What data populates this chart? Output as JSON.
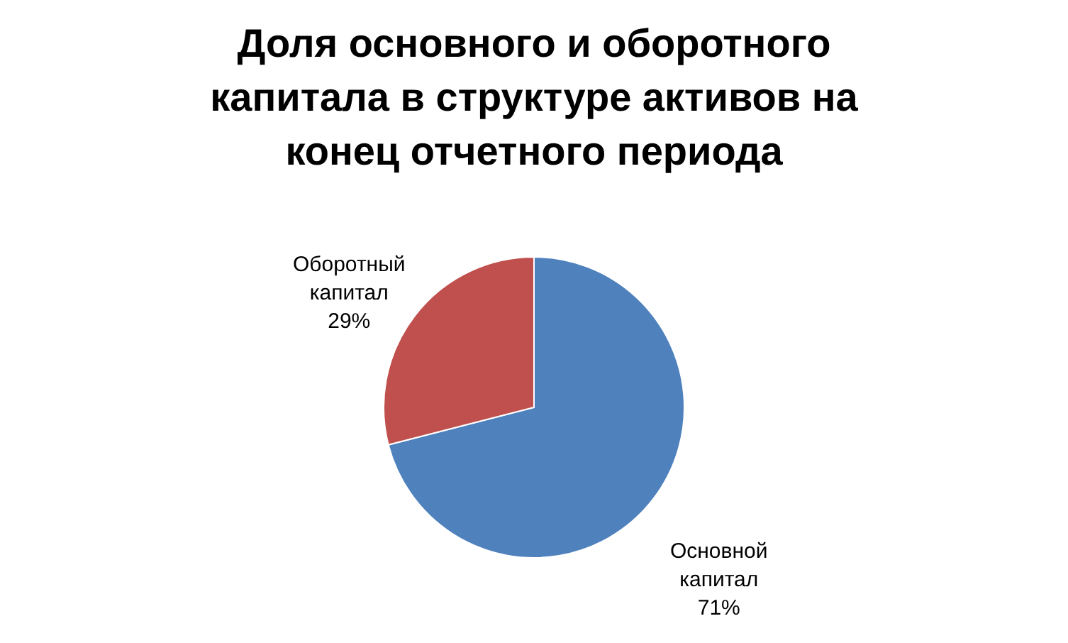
{
  "chart_data": {
    "type": "pie",
    "title": "Доля основного и оборотного капитала в структуре активов на конец отчетного периода",
    "categories": [
      "Основной капитал",
      "Оборотный капитал"
    ],
    "values": [
      71,
      29
    ],
    "colors": [
      "#4f81bd",
      "#c0504d"
    ],
    "value_labels": [
      "71%",
      "29%"
    ],
    "legend": false
  }
}
